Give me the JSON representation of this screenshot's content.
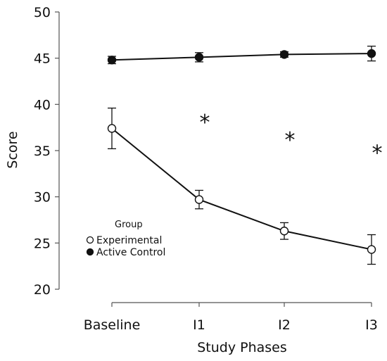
{
  "chart_data": {
    "type": "line",
    "xlabel": "Study Phases",
    "ylabel": "Score",
    "ylim": [
      20,
      50
    ],
    "yticks": [
      20,
      25,
      30,
      35,
      40,
      45,
      50
    ],
    "categories": [
      "Baseline",
      "I1",
      "I2",
      "I3"
    ],
    "legend": {
      "title": "Group",
      "placement": "center-left"
    },
    "series": [
      {
        "name": "Experimental",
        "marker": "open-circle",
        "values": [
          37.4,
          29.7,
          26.3,
          24.3
        ],
        "error": [
          2.2,
          1.0,
          0.9,
          1.6
        ]
      },
      {
        "name": "Active Control",
        "marker": "filled-circle",
        "values": [
          44.8,
          45.1,
          45.4,
          45.5
        ],
        "error": [
          0.4,
          0.5,
          0.3,
          0.8
        ]
      }
    ],
    "annotations": [
      {
        "category": "I1",
        "text": "*",
        "y": 38.2
      },
      {
        "category": "I2",
        "text": "*",
        "y": 36.3
      },
      {
        "category": "I3",
        "text": "*",
        "y": 34.9
      }
    ]
  }
}
